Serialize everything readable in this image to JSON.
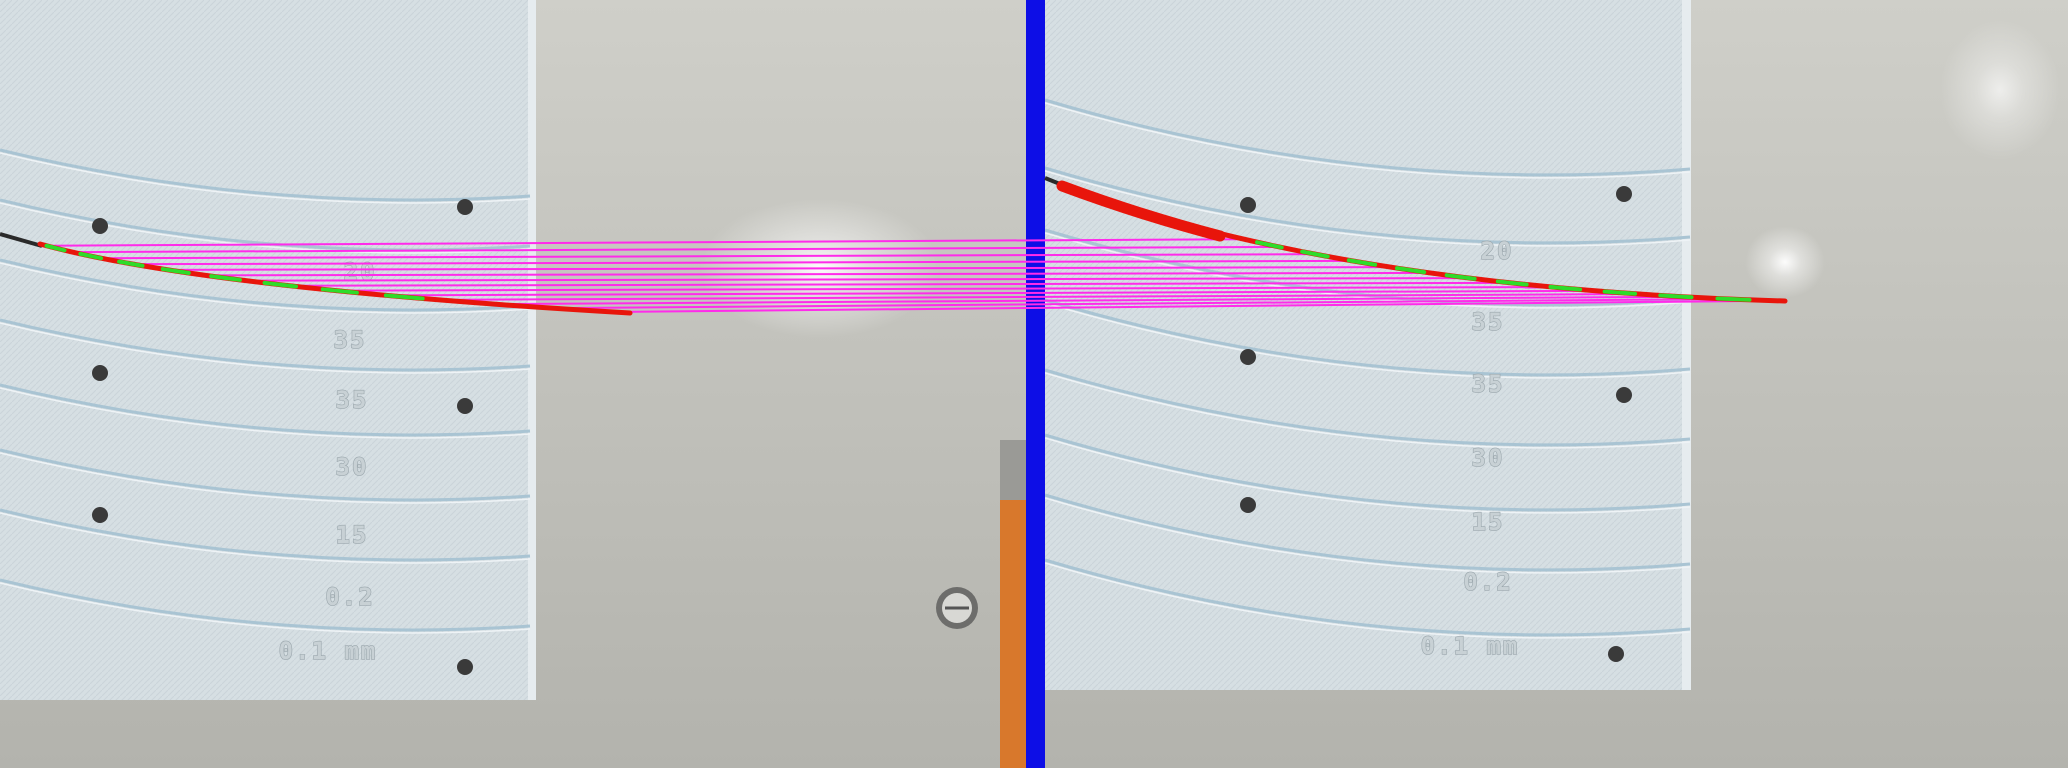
{
  "colors": {
    "divider": "#0d0ee6",
    "match_line": "#ff2bea",
    "contour": "#e8150b",
    "keypoint": "#2edc2a",
    "plate": "#d6dfe3",
    "background": "#c2c2bc"
  },
  "left_view": {
    "markings": [
      "20",
      "35",
      "35",
      "30",
      "15",
      "0.2",
      "0.1 mm"
    ]
  },
  "right_view": {
    "markings": [
      "20",
      "35",
      "35",
      "30",
      "15",
      "0.2",
      "0.1 mm"
    ]
  },
  "match_count": 14
}
